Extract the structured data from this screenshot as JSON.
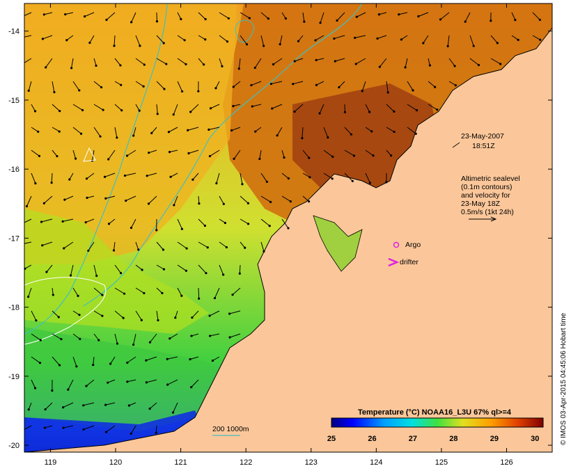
{
  "map": {
    "x_ticks": [
      "119",
      "120",
      "121",
      "122",
      "123",
      "124",
      "125",
      "126"
    ],
    "y_ticks": [
      "-14",
      "-15",
      "-16",
      "-17",
      "-18",
      "-19",
      "-20"
    ],
    "lon_range": [
      118.6,
      126.7
    ],
    "lat_range": [
      -20.1,
      -13.6
    ]
  },
  "annotations": {
    "date": "23-May-2007",
    "time": "18:51Z",
    "legend_lines": [
      "Altimetric sealevel",
      "(0.1m contours)",
      "and velocity for",
      "23-May 18Z",
      "0.5m/s (1kt 24h)"
    ],
    "argo_label": "Argo",
    "drifter_label": "drifter",
    "depth_label": "200  1000m"
  },
  "colorbar": {
    "title": "Temperature (°C) NOAA16_L3U 67% ql>=4",
    "ticks": [
      "25",
      "26",
      "27",
      "28",
      "29",
      "30"
    ],
    "range": [
      25,
      30.2
    ]
  },
  "credit": "© IMOS 03-Apr-2015 04:45:06 Hobart time",
  "colors": {
    "land": "#fbc79a",
    "argo_marker": "#e020e0",
    "contour": "#40c0c0",
    "arrow": "#000000"
  }
}
